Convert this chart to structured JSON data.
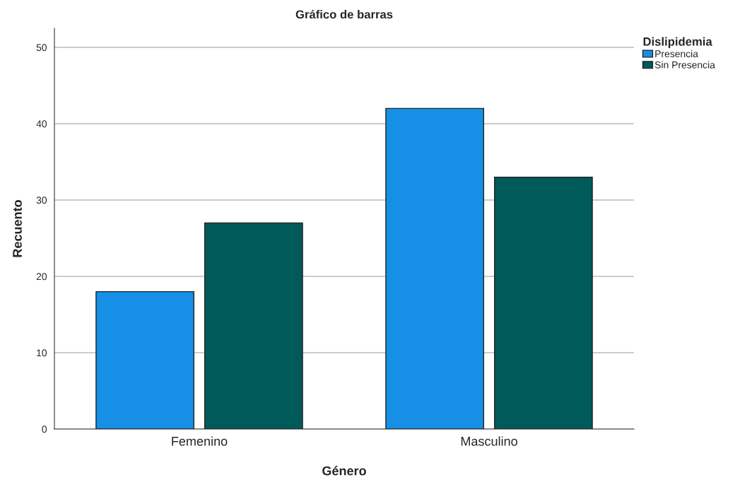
{
  "chart_data": {
    "type": "bar",
    "title": "Gráfico de barras",
    "xlabel": "Género",
    "ylabel": "Recuento",
    "legend_title": "Dislipidemia",
    "categories": [
      "Femenino",
      "Masculino"
    ],
    "series": [
      {
        "name": "Presencia",
        "color": "#1590e6",
        "values": [
          18,
          42
        ]
      },
      {
        "name": "Sin Presencia",
        "color": "#005a5a",
        "values": [
          27,
          33
        ]
      }
    ],
    "ylim": [
      0,
      52.5
    ],
    "yticks": [
      0,
      10,
      20,
      30,
      40,
      50
    ],
    "grid": "y",
    "legend": "top right"
  }
}
